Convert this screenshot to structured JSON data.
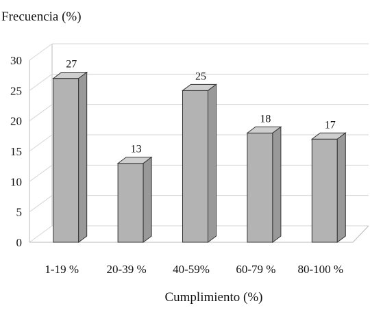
{
  "chart_data": {
    "type": "bar",
    "title": "",
    "ylabel": "Frecuencia (%)",
    "xlabel": "Cumplimiento (%)",
    "categories": [
      "1-19 %",
      "20-39 %",
      "40-59%",
      "60-79 %",
      "80-100 %"
    ],
    "values": [
      27,
      13,
      25,
      18,
      17
    ],
    "data_labels": [
      "27",
      "13",
      "25",
      "18",
      "17"
    ],
    "ylim": [
      0,
      30
    ],
    "yticks": [
      "0",
      "5",
      "10",
      "15",
      "20",
      "25",
      "30"
    ],
    "grid": true,
    "legend": "none",
    "style": "3d",
    "colors": {
      "bar_front": "#b3b3b3",
      "bar_top": "#cfcfcf",
      "bar_side": "#999999",
      "bar_edge": "#333333",
      "grid": "#d6d6d6",
      "axis": "#bbbbbb"
    }
  }
}
